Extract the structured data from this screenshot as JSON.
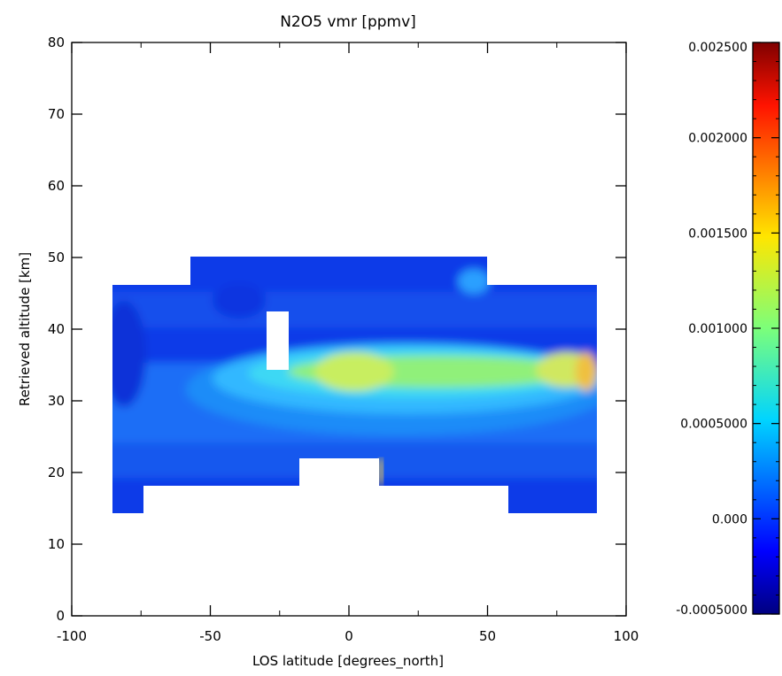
{
  "chart_data": {
    "type": "heatmap",
    "title": "N2O5 vmr [ppmv]",
    "xlabel": "LOS latitude [degrees_north]",
    "ylabel": "Retrieved altitude [km]",
    "xlim": [
      -100,
      100
    ],
    "ylim": [
      0,
      80
    ],
    "x_ticks": [
      "-100",
      "-50",
      "0",
      "50",
      "100"
    ],
    "y_ticks": [
      "0",
      "10",
      "20",
      "30",
      "40",
      "50",
      "60",
      "70",
      "80"
    ],
    "colorbar": {
      "range": [
        -0.0005,
        0.0025
      ],
      "ticks": [
        {
          "value": -0.0005,
          "label": "-0.0005000"
        },
        {
          "value": 0.0,
          "label": "0.000"
        },
        {
          "value": 0.0005,
          "label": "0.0005000"
        },
        {
          "value": 0.001,
          "label": "0.001000"
        },
        {
          "value": 0.0015,
          "label": "0.001500"
        },
        {
          "value": 0.002,
          "label": "0.002000"
        },
        {
          "value": 0.0025,
          "label": "0.002500"
        }
      ],
      "colormap": "rainbow (dark blue to dark red)"
    },
    "data_extent": {
      "x_range": [
        -86,
        90
      ],
      "altitude_range_km": [
        14,
        50
      ],
      "max_region": {
        "lat": [
          80,
          90
        ],
        "alt_km": [
          30,
          35
        ],
        "approx_value": 0.0015
      },
      "layer_peak_alt_km": [
        30,
        35
      ]
    },
    "grid": false
  }
}
